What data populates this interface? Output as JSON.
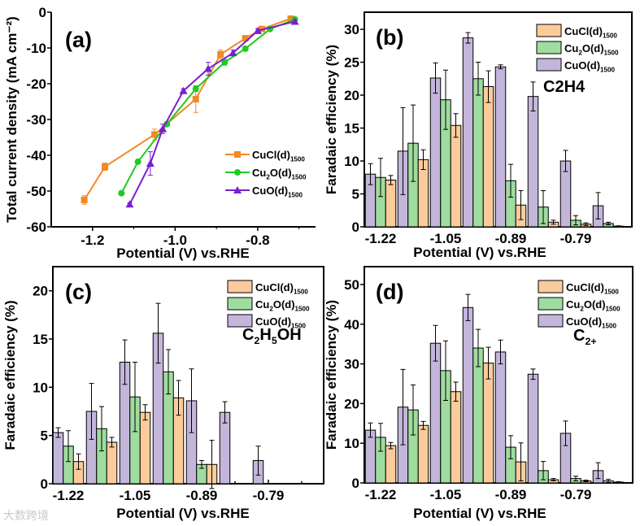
{
  "colors": {
    "CuCl_line": "#F08A24",
    "Cu2O_line": "#1FCB1F",
    "CuO_line": "#7A1FD0",
    "CuCl_bar": "#FCCB9C",
    "Cu2O_bar": "#9FDC9F",
    "CuO_bar": "#C4B6DB"
  },
  "series_labels": [
    {
      "key": "CuCl",
      "segments": [
        {
          "t": "CuCl(d)"
        },
        {
          "t": "1500",
          "sub": true
        }
      ]
    },
    {
      "key": "Cu2O",
      "segments": [
        {
          "t": "Cu"
        },
        {
          "t": "2",
          "sub": true
        },
        {
          "t": "O(d)"
        },
        {
          "t": "1500",
          "sub": true
        }
      ]
    },
    {
      "key": "CuO",
      "segments": [
        {
          "t": "CuO(d)"
        },
        {
          "t": "1500",
          "sub": true
        }
      ]
    }
  ],
  "watermark": "大数跨境",
  "chart_data": [
    {
      "panel": "(a)",
      "type": "line",
      "xlabel": "Potential (V) vs.RHE",
      "ylabel": "Total current density (mA cm⁻²)",
      "xlim": [
        -1.3,
        -0.66
      ],
      "ylim": [
        -60,
        0
      ],
      "xticks": [
        -1.2,
        -1.0,
        -0.8
      ],
      "xtick_labels": [
        "-1.2",
        "-1.0",
        "-0.8"
      ],
      "yticks": [
        0,
        -10,
        -20,
        -30,
        -40,
        -50,
        -60
      ],
      "ytick_labels": [
        "0",
        "-10",
        "-20",
        "-30",
        "-40",
        "-50",
        "-60"
      ],
      "legend": "center-right",
      "series": [
        {
          "key": "CuCl",
          "marker": "square",
          "x": [
            -1.22,
            -1.17,
            -1.05,
            -0.95,
            -0.89,
            -0.83,
            -0.79,
            -0.72
          ],
          "y": [
            -52.5,
            -43.2,
            -34.2,
            -24.3,
            -11.8,
            -7.3,
            -4.7,
            -1.8
          ],
          "err": [
            1.2,
            1.0,
            1.5,
            3.7,
            1.2,
            0.5,
            0.5,
            0.3
          ]
        },
        {
          "key": "Cu2O",
          "marker": "circle",
          "x": [
            -1.13,
            -1.09,
            -1.02,
            -0.95,
            -0.88,
            -0.83,
            -0.77,
            -0.71
          ],
          "y": [
            -50.6,
            -41.8,
            -31.3,
            -21.4,
            -14.0,
            -10.2,
            -4.7,
            -2.0
          ],
          "err": [
            0.6,
            0.6,
            0.6,
            0.8,
            0.8,
            0.5,
            0.4,
            0.3
          ]
        },
        {
          "key": "CuO",
          "marker": "triangle",
          "x": [
            -1.11,
            -1.06,
            -1.03,
            -0.98,
            -0.92,
            -0.86,
            -0.8,
            -0.71
          ],
          "y": [
            -53.7,
            -42.3,
            -32.6,
            -22.0,
            -15.8,
            -11.4,
            -5.2,
            -2.6
          ],
          "err": [
            0.4,
            3.3,
            1.3,
            0.6,
            1.8,
            0.8,
            0.6,
            0.3
          ]
        }
      ]
    },
    {
      "panel": "(b)",
      "type": "bar",
      "product": "C2H4",
      "product_segments": [
        {
          "t": "C"
        },
        {
          "t": "2"
        },
        {
          "t": "H"
        },
        {
          "t": "4"
        }
      ],
      "xlabel": "Potential (V) vs.RHE",
      "ylabel": "Faradaic efficiency (%)",
      "ylim": [
        0,
        32.6
      ],
      "yticks": [
        0,
        5,
        10,
        15,
        20,
        25,
        30
      ],
      "categories": [
        "-1.22",
        "",
        "-1.05",
        "",
        "-0.89",
        "",
        "-0.79",
        ""
      ],
      "series": [
        {
          "key": "CuO",
          "values": [
            8.0,
            11.5,
            22.6,
            28.7,
            24.3,
            19.8,
            10.0,
            3.2
          ],
          "err": [
            1.6,
            6.6,
            2.3,
            0.8,
            0.3,
            2.2,
            1.6,
            2.0
          ]
        },
        {
          "key": "Cu2O",
          "values": [
            7.5,
            12.7,
            19.3,
            22.5,
            7.0,
            3.0,
            1.0,
            0.5
          ],
          "err": [
            2.9,
            5.8,
            4.5,
            2.5,
            2.5,
            2.5,
            0.7,
            0.2
          ]
        },
        {
          "key": "CuCl",
          "values": [
            7.1,
            10.2,
            15.4,
            21.3,
            3.3,
            0.7,
            0.4,
            0.1
          ],
          "err": [
            0.7,
            1.5,
            1.8,
            2.4,
            2.2,
            0.3,
            0.2,
            0.05
          ]
        }
      ]
    },
    {
      "panel": "(c)",
      "type": "bar",
      "product": "C2H5OH",
      "product_segments": [
        {
          "t": "C"
        },
        {
          "t": "2",
          "sub": true
        },
        {
          "t": "H"
        },
        {
          "t": "5",
          "sub": true
        },
        {
          "t": "OH"
        }
      ],
      "xlabel": "Potential (V) vs.RHE",
      "ylabel": "Faradaic efficiency (%)",
      "ylim": [
        0,
        22.5
      ],
      "yticks": [
        0,
        5,
        10,
        15,
        20
      ],
      "categories": [
        "-1.22",
        "",
        "-1.05",
        "",
        "-0.89",
        "",
        "-0.79",
        ""
      ],
      "series": [
        {
          "key": "CuO",
          "values": [
            5.3,
            7.5,
            12.6,
            15.6,
            8.6,
            7.4,
            2.4,
            0
          ],
          "err": [
            0.5,
            2.9,
            2.3,
            3.1,
            3.3,
            1.1,
            1.5,
            0
          ]
        },
        {
          "key": "Cu2O",
          "values": [
            3.9,
            5.7,
            9.0,
            11.6,
            2.0,
            0,
            0,
            0
          ],
          "err": [
            1.6,
            2.3,
            3.6,
            2.3,
            0.4,
            0,
            0,
            0
          ]
        },
        {
          "key": "CuCl",
          "values": [
            2.3,
            4.3,
            7.4,
            8.9,
            2.0,
            0,
            0,
            0
          ],
          "err": [
            0.8,
            0.5,
            0.8,
            1.8,
            2.5,
            0,
            0,
            0
          ]
        }
      ]
    },
    {
      "panel": "(d)",
      "type": "bar",
      "product": "C2+",
      "product_segments": [
        {
          "t": "C"
        },
        {
          "t": "2+",
          "sub": true
        }
      ],
      "xlabel": "Potential (V) vs.RHE",
      "ylabel": "Faradaic efficiency (%)",
      "ylim": [
        0,
        54.5
      ],
      "yticks": [
        0,
        10,
        20,
        30,
        40,
        50
      ],
      "categories": [
        "-1.22",
        "",
        "-1.05",
        "",
        "-0.89",
        "",
        "-0.79",
        ""
      ],
      "series": [
        {
          "key": "CuO",
          "values": [
            13.3,
            19.1,
            35.2,
            44.2,
            33.0,
            27.4,
            12.5,
            3.1
          ],
          "err": [
            1.8,
            9.5,
            4.5,
            3.3,
            3.0,
            1.3,
            3.1,
            2.0
          ]
        },
        {
          "key": "Cu2O",
          "values": [
            11.5,
            18.4,
            28.3,
            34.0,
            9.0,
            3.1,
            1.1,
            0.5
          ],
          "err": [
            3.5,
            6.3,
            7.5,
            4.7,
            2.9,
            2.3,
            0.6,
            0.4
          ]
        },
        {
          "key": "CuCl",
          "values": [
            9.4,
            14.5,
            23.0,
            30.2,
            5.3,
            0.8,
            0.5,
            0.2
          ],
          "err": [
            0.8,
            1.0,
            2.4,
            4.0,
            4.8,
            0.3,
            0.2,
            0.1
          ]
        }
      ]
    }
  ]
}
